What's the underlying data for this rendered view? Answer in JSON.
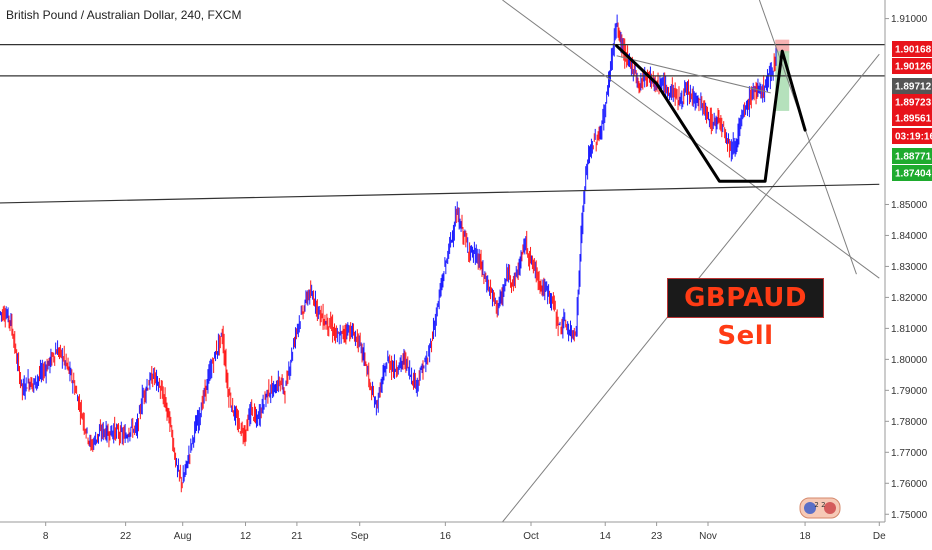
{
  "title": "British Pound / Australian Dollar, 240, FXCM",
  "sell_label": "GBPAUD Sell",
  "watermark_text": "2 2",
  "colors": {
    "bull": "#1a1aff",
    "bear": "#ff1a1a",
    "trendline": "#808080",
    "hline": "#333333",
    "projection": "#000000",
    "stop_zone": "#f4a6a6",
    "target_zone": "#a8dcb0"
  },
  "chart_data": {
    "type": "line",
    "title": "British Pound / Australian Dollar, 240, FXCM",
    "ylim": [
      1.7475,
      1.916
    ],
    "yticks": [
      1.75,
      1.76,
      1.77,
      1.78,
      1.79,
      1.8,
      1.81,
      1.82,
      1.83,
      1.84,
      1.85,
      1.91
    ],
    "xticks": [
      {
        "label": "8",
        "day": 8
      },
      {
        "label": "22",
        "day": 22
      },
      {
        "label": "Aug",
        "day": 32
      },
      {
        "label": "12",
        "day": 43
      },
      {
        "label": "21",
        "day": 52
      },
      {
        "label": "Sep",
        "day": 63
      },
      {
        "label": "16",
        "day": 78
      },
      {
        "label": "Oct",
        "day": 93
      },
      {
        "label": "14",
        "day": 106
      },
      {
        "label": "23",
        "day": 115
      },
      {
        "label": "Nov",
        "day": 124
      },
      {
        "label": "18",
        "day": 141
      },
      {
        "label": "De",
        "day": 154
      }
    ],
    "price_badges": [
      {
        "value": "1.90168",
        "y": 1.90168,
        "color": "#e8131b"
      },
      {
        "value": "1.90126",
        "y": 1.90126,
        "color": "#e8131b"
      },
      {
        "value": "1.89712",
        "y": 1.89712,
        "color": "#555555"
      },
      {
        "value": "1.89723",
        "y": 1.89723,
        "color": "#e8131b"
      },
      {
        "value": "1.89561",
        "y": 1.89561,
        "color": "#e8131b"
      },
      {
        "value": "03:19:16",
        "y": 1.8922,
        "color": "#e8131b"
      },
      {
        "value": "1.88771",
        "y": 1.88771,
        "color": "#1eab2e"
      },
      {
        "value": "1.87404",
        "y": 1.87404,
        "color": "#1eab2e"
      }
    ],
    "series": [
      {
        "points": [
          [
            1,
            1.815
          ],
          [
            2,
            1.812
          ],
          [
            3,
            1.8
          ],
          [
            4,
            1.79
          ],
          [
            5,
            1.793
          ],
          [
            6,
            1.792
          ],
          [
            7,
            1.795
          ],
          [
            8,
            1.797
          ],
          [
            9,
            1.8
          ],
          [
            10,
            1.803
          ],
          [
            11,
            1.801
          ],
          [
            12,
            1.797
          ],
          [
            13,
            1.792
          ],
          [
            14,
            1.785
          ],
          [
            15,
            1.778
          ],
          [
            16,
            1.772
          ],
          [
            17,
            1.775
          ],
          [
            18,
            1.777
          ],
          [
            19,
            1.776
          ],
          [
            20,
            1.777
          ],
          [
            21,
            1.776
          ],
          [
            22,
            1.775
          ],
          [
            23,
            1.778
          ],
          [
            24,
            1.777
          ],
          [
            25,
            1.788
          ],
          [
            26,
            1.792
          ],
          [
            27,
            1.795
          ],
          [
            28,
            1.791
          ],
          [
            29,
            1.786
          ],
          [
            30,
            1.778
          ],
          [
            31,
            1.765
          ],
          [
            32,
            1.76
          ],
          [
            33,
            1.768
          ],
          [
            34,
            1.776
          ],
          [
            35,
            1.782
          ],
          [
            36,
            1.79
          ],
          [
            37,
            1.797
          ],
          [
            38,
            1.803
          ],
          [
            39,
            1.808
          ],
          [
            40,
            1.79
          ],
          [
            41,
            1.783
          ],
          [
            42,
            1.778
          ],
          [
            43,
            1.776
          ],
          [
            44,
            1.784
          ],
          [
            45,
            1.78
          ],
          [
            46,
            1.785
          ],
          [
            47,
            1.79
          ],
          [
            48,
            1.79
          ],
          [
            49,
            1.793
          ],
          [
            50,
            1.79
          ],
          [
            51,
            1.8
          ],
          [
            52,
            1.81
          ],
          [
            53,
            1.815
          ],
          [
            54,
            1.821
          ],
          [
            55,
            1.82
          ],
          [
            56,
            1.815
          ],
          [
            57,
            1.812
          ],
          [
            58,
            1.811
          ],
          [
            59,
            1.807
          ],
          [
            60,
            1.808
          ],
          [
            61,
            1.81
          ],
          [
            62,
            1.808
          ],
          [
            63,
            1.805
          ],
          [
            64,
            1.8
          ],
          [
            65,
            1.79
          ],
          [
            66,
            1.785
          ],
          [
            67,
            1.793
          ],
          [
            68,
            1.8
          ],
          [
            69,
            1.797
          ],
          [
            70,
            1.798
          ],
          [
            71,
            1.8
          ],
          [
            72,
            1.795
          ],
          [
            73,
            1.792
          ],
          [
            74,
            1.797
          ],
          [
            75,
            1.8
          ],
          [
            76,
            1.81
          ],
          [
            77,
            1.82
          ],
          [
            78,
            1.83
          ],
          [
            79,
            1.838
          ],
          [
            80,
            1.847
          ],
          [
            81,
            1.842
          ],
          [
            82,
            1.836
          ],
          [
            83,
            1.834
          ],
          [
            84,
            1.832
          ],
          [
            85,
            1.826
          ],
          [
            86,
            1.822
          ],
          [
            87,
            1.817
          ],
          [
            88,
            1.82
          ],
          [
            89,
            1.828
          ],
          [
            90,
            1.825
          ],
          [
            91,
            1.83
          ],
          [
            92,
            1.838
          ],
          [
            93,
            1.832
          ],
          [
            94,
            1.828
          ],
          [
            95,
            1.823
          ],
          [
            96,
            1.822
          ],
          [
            97,
            1.818
          ],
          [
            98,
            1.81
          ],
          [
            99,
            1.812
          ],
          [
            100,
            1.808
          ],
          [
            101,
            1.81
          ],
          [
            102,
            1.845
          ],
          [
            103,
            1.865
          ],
          [
            104,
            1.87
          ],
          [
            105,
            1.872
          ],
          [
            106,
            1.88
          ],
          [
            107,
            1.895
          ],
          [
            108,
            1.908
          ],
          [
            109,
            1.901
          ],
          [
            110,
            1.896
          ],
          [
            111,
            1.894
          ],
          [
            112,
            1.888
          ],
          [
            113,
            1.892
          ],
          [
            114,
            1.891
          ],
          [
            115,
            1.888
          ],
          [
            116,
            1.89
          ],
          [
            117,
            1.886
          ],
          [
            118,
            1.887
          ],
          [
            119,
            1.883
          ],
          [
            120,
            1.886
          ],
          [
            121,
            1.885
          ],
          [
            122,
            1.884
          ],
          [
            123,
            1.882
          ],
          [
            124,
            1.878
          ],
          [
            125,
            1.876
          ],
          [
            126,
            1.878
          ],
          [
            127,
            1.874
          ],
          [
            128,
            1.868
          ],
          [
            129,
            1.87
          ],
          [
            130,
            1.878
          ],
          [
            131,
            1.882
          ],
          [
            132,
            1.887
          ],
          [
            133,
            1.886
          ],
          [
            134,
            1.888
          ],
          [
            135,
            1.892
          ],
          [
            136,
            1.898
          ]
        ]
      }
    ],
    "horizontal_lines": [
      1.9016,
      1.8915
    ],
    "trendlines": [
      {
        "from": [
          88,
          1.7475
        ],
        "to": [
          154,
          1.8985
        ]
      },
      {
        "from": [
          88,
          1.916
        ],
        "to": [
          154,
          1.8262
        ]
      },
      {
        "from": [
          133,
          1.916
        ],
        "to": [
          150,
          1.8275
        ]
      },
      {
        "from": [
          0,
          1.8505
        ],
        "to": [
          154,
          1.8565
        ]
      },
      {
        "from": [
          108,
          1.898
        ],
        "to": [
          135,
          1.886
        ]
      }
    ],
    "projection": [
      [
        108,
        1.9012
      ],
      [
        115,
        1.889
      ],
      [
        126,
        1.8575
      ],
      [
        134,
        1.8575
      ],
      [
        137,
        1.8995
      ],
      [
        141,
        1.874
      ]
    ],
    "zones": {
      "stop": [
        137,
        1.9032,
        1.899
      ],
      "target": [
        137,
        1.8995,
        1.8802
      ]
    }
  }
}
